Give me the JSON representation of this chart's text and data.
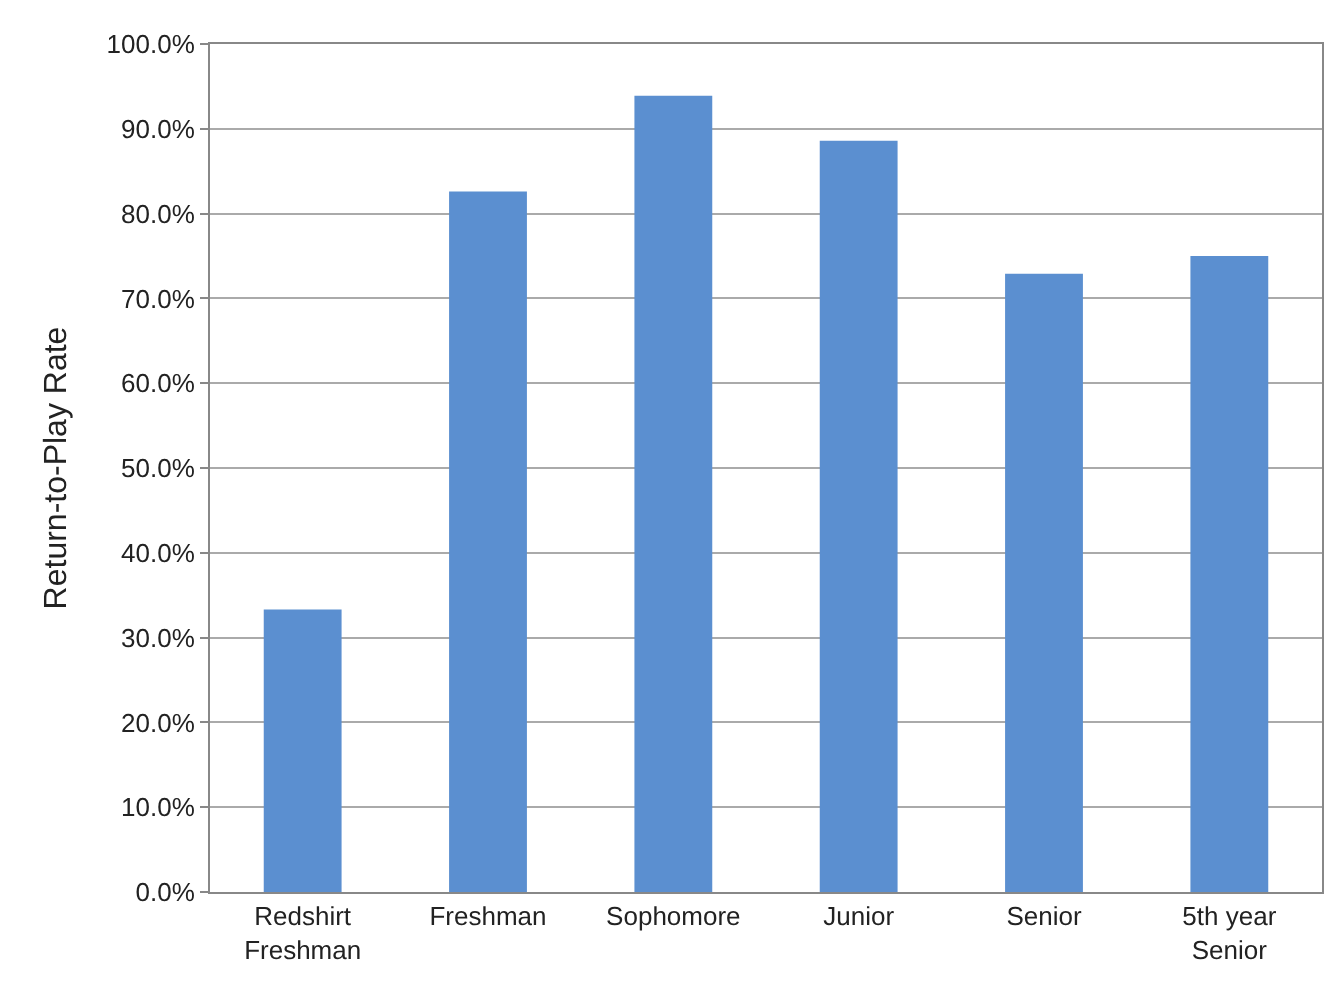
{
  "chart_data": {
    "type": "bar",
    "ylabel": "Return-to-Play Rate",
    "categories": [
      "Redshirt\nFreshman",
      "Freshman",
      "Sophomore",
      "Junior",
      "Senior",
      "5th year\nSenior"
    ],
    "values": [
      33.3,
      82.6,
      93.9,
      88.6,
      72.9,
      75.0
    ],
    "color": "#5b8fd0",
    "ylim": [
      0,
      100
    ],
    "yticks": [
      {
        "value": 0,
        "label": "0.0%"
      },
      {
        "value": 10,
        "label": "10.0%"
      },
      {
        "value": 20,
        "label": "20.0%"
      },
      {
        "value": 30,
        "label": "30.0%"
      },
      {
        "value": 40,
        "label": "40.0%"
      },
      {
        "value": 50,
        "label": "50.0%"
      },
      {
        "value": 60,
        "label": "60.0%"
      },
      {
        "value": 70,
        "label": "70.0%"
      },
      {
        "value": 80,
        "label": "80.0%"
      },
      {
        "value": 90,
        "label": "90.0%"
      },
      {
        "value": 100,
        "label": "100.0%"
      }
    ],
    "grid": "y",
    "legend": false
  }
}
